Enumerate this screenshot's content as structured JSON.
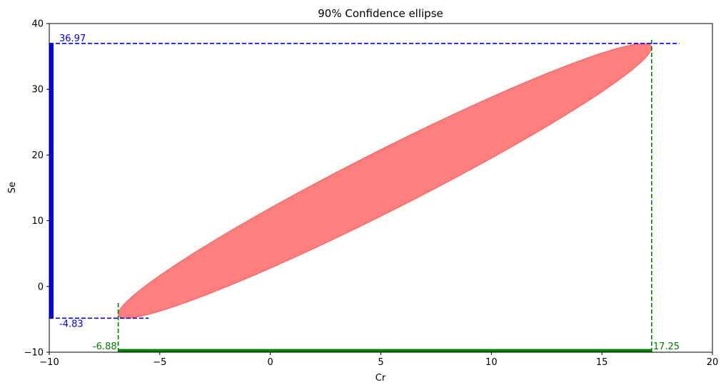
{
  "chart_data": {
    "type": "confidence-ellipse",
    "title": "90% Confidence ellipse",
    "xlabel": "Cr",
    "ylabel": "Se",
    "xlim": [
      -10,
      20
    ],
    "ylim": [
      -10,
      40
    ],
    "x_ticks": [
      -10,
      -5,
      0,
      5,
      10,
      15,
      20
    ],
    "y_ticks": [
      -10,
      0,
      10,
      20,
      30,
      40
    ],
    "x_tick_labels": [
      "−10",
      "−5",
      "0",
      "5",
      "10",
      "15",
      "20"
    ],
    "y_tick_labels": [
      "−10",
      "0",
      "10",
      "20",
      "30",
      "40"
    ],
    "grid": false,
    "ellipse": {
      "center": [
        5.19,
        16.07
      ],
      "x_extent": [
        -6.88,
        17.25
      ],
      "y_extent": [
        -4.83,
        36.97
      ],
      "correlation": 0.97,
      "fill_color": "#ff0000",
      "fill_opacity": 0.5
    },
    "x_range": {
      "min": -6.88,
      "max": 17.25,
      "min_label": "-6.88",
      "max_label": "17.25",
      "color": "#008000"
    },
    "y_range": {
      "min": -4.83,
      "max": 36.97,
      "min_label": "-4.83",
      "max_label": "36.97",
      "color": "#0000ff"
    }
  }
}
